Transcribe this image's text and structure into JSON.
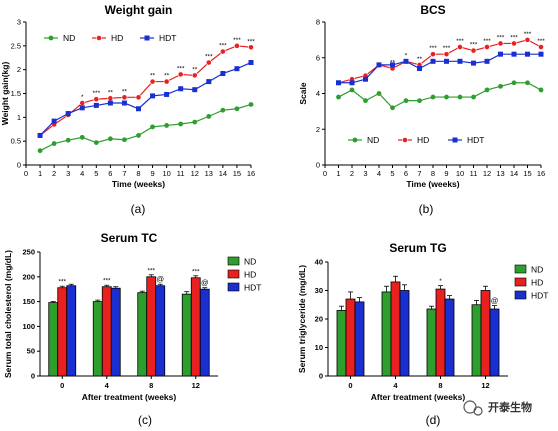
{
  "panels": [
    {
      "caption": "(a)"
    },
    {
      "caption": "(b)"
    },
    {
      "caption": "(c)"
    },
    {
      "caption": "(d)"
    }
  ],
  "watermark": "开泰生物",
  "colors": {
    "ND": "#2e9e2e",
    "HD": "#e82020",
    "HDT": "#1a2fd0"
  },
  "chart_data": [
    {
      "type": "line",
      "title": "Weight gain",
      "xlabel": "Time (weeks)",
      "ylabel": "Weight gain(kg)",
      "xlim": [
        0,
        16
      ],
      "ylim": [
        0,
        3
      ],
      "x": [
        1,
        2,
        3,
        4,
        5,
        6,
        7,
        8,
        9,
        10,
        11,
        12,
        13,
        14,
        15,
        16
      ],
      "xticks": [
        0,
        1,
        2,
        3,
        4,
        5,
        6,
        7,
        8,
        9,
        10,
        11,
        12,
        13,
        14,
        15,
        16
      ],
      "yticks": [
        0,
        0.5,
        1,
        1.5,
        2,
        2.5,
        3
      ],
      "legend": "top-left",
      "series": [
        {
          "name": "ND",
          "values": [
            0.3,
            0.45,
            0.52,
            0.58,
            0.47,
            0.55,
            0.53,
            0.62,
            0.8,
            0.83,
            0.86,
            0.9,
            1.02,
            1.15,
            1.18,
            1.27
          ]
        },
        {
          "name": "HD",
          "values": [
            0.62,
            0.85,
            1.05,
            1.3,
            1.38,
            1.4,
            1.42,
            1.42,
            1.75,
            1.75,
            1.9,
            1.88,
            2.15,
            2.38,
            2.5,
            2.47
          ]
        },
        {
          "name": "HDT",
          "values": [
            0.62,
            0.92,
            1.08,
            1.2,
            1.25,
            1.3,
            1.3,
            1.18,
            1.45,
            1.48,
            1.6,
            1.58,
            1.75,
            1.92,
            2.02,
            2.15
          ]
        }
      ],
      "annotations": [
        {
          "x": 4,
          "text": "*"
        },
        {
          "x": 5,
          "text": "***"
        },
        {
          "x": 6,
          "text": "**"
        },
        {
          "x": 7,
          "text": "**"
        },
        {
          "x": 9,
          "text": "**"
        },
        {
          "x": 10,
          "text": "**"
        },
        {
          "x": 11,
          "text": "***"
        },
        {
          "x": 12,
          "text": "**"
        },
        {
          "x": 13,
          "text": "***"
        },
        {
          "x": 14,
          "text": "***"
        },
        {
          "x": 15,
          "text": "***"
        },
        {
          "x": 16,
          "text": "***"
        }
      ]
    },
    {
      "type": "line",
      "title": "BCS",
      "xlabel": "Time (weeks)",
      "ylabel": "Scale",
      "xlim": [
        0,
        16
      ],
      "ylim": [
        0,
        8
      ],
      "x": [
        1,
        2,
        3,
        4,
        5,
        6,
        7,
        8,
        9,
        10,
        11,
        12,
        13,
        14,
        15,
        16
      ],
      "xticks": [
        0,
        1,
        2,
        3,
        4,
        5,
        6,
        7,
        8,
        9,
        10,
        11,
        12,
        13,
        14,
        15,
        16
      ],
      "yticks": [
        0,
        2,
        4,
        6,
        8
      ],
      "legend": "bottom",
      "series": [
        {
          "name": "ND",
          "values": [
            3.8,
            4.2,
            3.6,
            4.0,
            3.2,
            3.6,
            3.6,
            3.8,
            3.8,
            3.8,
            3.8,
            4.2,
            4.4,
            4.6,
            4.6,
            4.2
          ]
        },
        {
          "name": "HD",
          "values": [
            4.6,
            4.8,
            5.0,
            5.6,
            5.4,
            5.8,
            5.6,
            6.2,
            6.2,
            6.6,
            6.4,
            6.6,
            6.8,
            6.8,
            7.0,
            6.6
          ]
        },
        {
          "name": "HDT",
          "values": [
            4.6,
            4.6,
            4.8,
            5.6,
            5.6,
            5.8,
            5.4,
            5.8,
            5.8,
            5.8,
            5.7,
            5.8,
            6.2,
            6.2,
            6.2,
            6.2
          ]
        }
      ],
      "annotations": [
        {
          "x": 5,
          "text": "**"
        },
        {
          "x": 6,
          "text": "*"
        },
        {
          "x": 7,
          "text": "**"
        },
        {
          "x": 8,
          "text": "***"
        },
        {
          "x": 9,
          "text": "***"
        },
        {
          "x": 10,
          "text": "***"
        },
        {
          "x": 11,
          "text": "***"
        },
        {
          "x": 12,
          "text": "***"
        },
        {
          "x": 13,
          "text": "***"
        },
        {
          "x": 14,
          "text": "***"
        },
        {
          "x": 15,
          "text": "***"
        },
        {
          "x": 16,
          "text": "***"
        }
      ]
    },
    {
      "type": "bar",
      "title": "Serum TC",
      "xlabel": "After treatment (weeks)",
      "ylabel": "Serum total cholesterol (mg/dL)",
      "ylim": [
        0,
        250
      ],
      "yticks": [
        0,
        50,
        100,
        150,
        200,
        250
      ],
      "categories": [
        "0",
        "4",
        "8",
        "12"
      ],
      "legend": "top-right",
      "series": [
        {
          "name": "ND",
          "values": [
            148,
            150,
            168,
            165
          ],
          "errors": [
            2,
            3,
            3,
            5
          ]
        },
        {
          "name": "HD",
          "values": [
            178,
            180,
            200,
            198
          ],
          "errors": [
            3,
            3,
            4,
            4
          ]
        },
        {
          "name": "HDT",
          "values": [
            182,
            177,
            182,
            175
          ],
          "errors": [
            3,
            3,
            3,
            3
          ]
        }
      ],
      "annotations": [
        {
          "category": "0",
          "series": "HD",
          "text": "***"
        },
        {
          "category": "4",
          "series": "HD",
          "text": "***"
        },
        {
          "category": "8",
          "series": "HD",
          "text": "***"
        },
        {
          "category": "8",
          "series": "HDT",
          "text": "@"
        },
        {
          "category": "12",
          "series": "HD",
          "text": "***"
        },
        {
          "category": "12",
          "series": "HDT",
          "text": "@"
        }
      ]
    },
    {
      "type": "bar",
      "title": "Serum TG",
      "xlabel": "After treatment (weeks)",
      "ylabel": "Serum triglyceride (mg/dL)",
      "ylim": [
        0,
        40
      ],
      "yticks": [
        0,
        10,
        20,
        30,
        40
      ],
      "categories": [
        "0",
        "4",
        "8",
        "12"
      ],
      "legend": "top-right",
      "series": [
        {
          "name": "ND",
          "values": [
            23,
            29.5,
            23.5,
            25
          ],
          "errors": [
            1.5,
            2,
            1,
            1.5
          ]
        },
        {
          "name": "HD",
          "values": [
            27,
            33,
            30.5,
            30
          ],
          "errors": [
            2.5,
            2,
            1.2,
            1.5
          ]
        },
        {
          "name": "HDT",
          "values": [
            26,
            30,
            27,
            23.5
          ],
          "errors": [
            1.5,
            2,
            1.2,
            1.2
          ]
        }
      ],
      "annotations": [
        {
          "category": "8",
          "series": "HD",
          "text": "*"
        },
        {
          "category": "12",
          "series": "HDT",
          "text": "@"
        }
      ]
    }
  ]
}
